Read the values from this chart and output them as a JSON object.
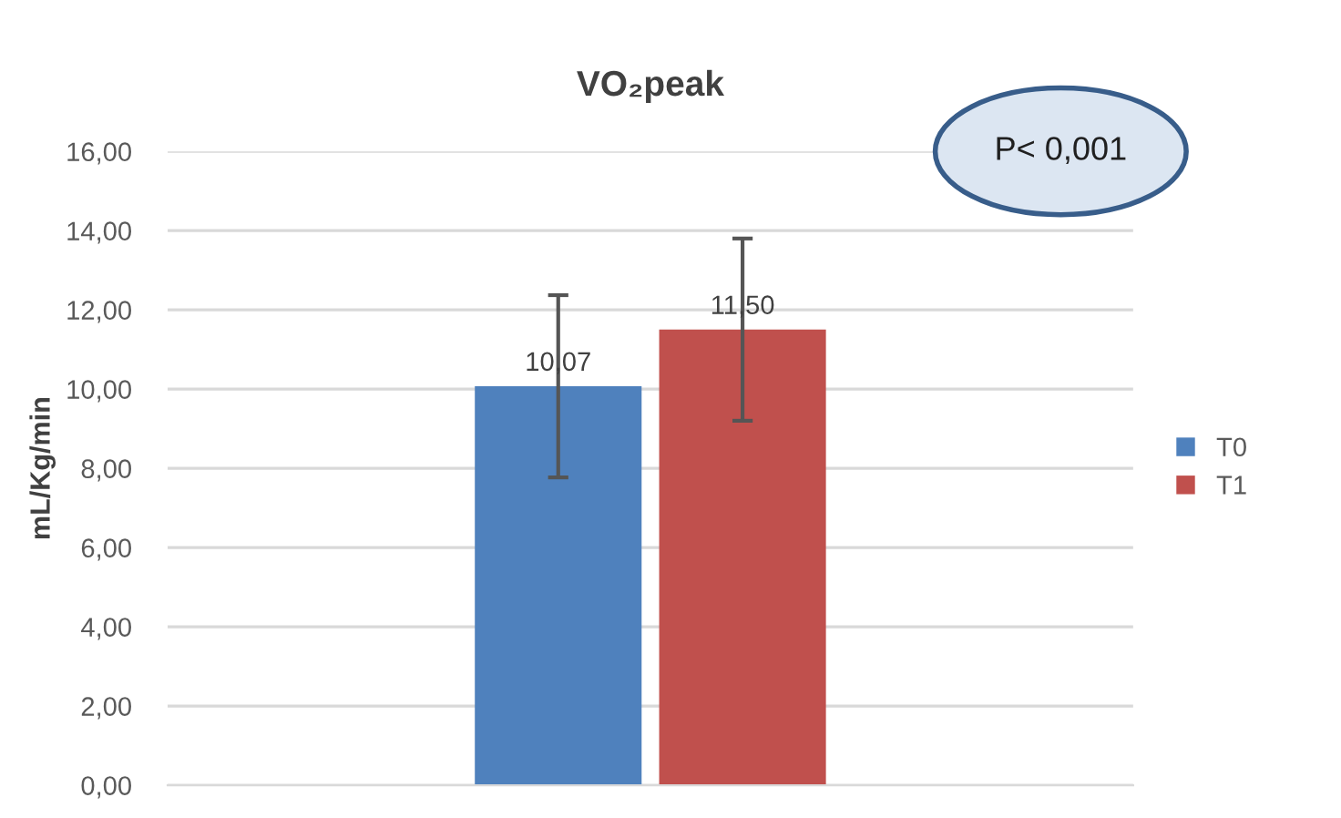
{
  "chart_data": {
    "type": "bar",
    "title": "VO₂peak",
    "ylabel": "mL/Kg/min",
    "categories": [
      null
    ],
    "series": [
      {
        "name": "T0",
        "color": "#4f81bd",
        "values": [
          10.07
        ],
        "errors": [
          2.3
        ],
        "value_labels": [
          "10,07"
        ]
      },
      {
        "name": "T1",
        "color": "#c0504d",
        "values": [
          11.5
        ],
        "errors": [
          2.3
        ],
        "value_labels": [
          "11,50"
        ]
      }
    ],
    "ylim": [
      0,
      16
    ],
    "yticks": [
      {
        "value": 0,
        "label": "0,00"
      },
      {
        "value": 2,
        "label": "2,00"
      },
      {
        "value": 4,
        "label": "4,00"
      },
      {
        "value": 6,
        "label": "6,00"
      },
      {
        "value": 8,
        "label": "8,00"
      },
      {
        "value": 10,
        "label": "10,00"
      },
      {
        "value": 12,
        "label": "12,00"
      },
      {
        "value": 14,
        "label": "14,00"
      },
      {
        "value": 16,
        "label": "16,00"
      }
    ],
    "grid": "y",
    "legend": "right",
    "annotations": [
      "P< 0,001"
    ]
  }
}
